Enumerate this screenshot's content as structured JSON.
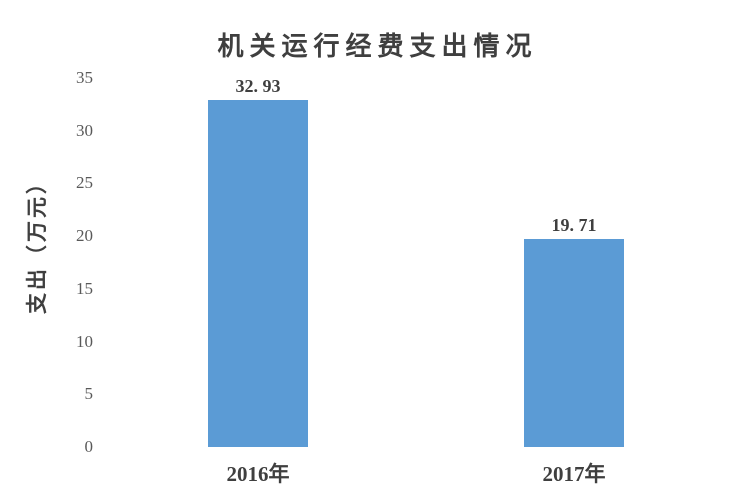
{
  "colors": {
    "bar": "#5B9BD5",
    "title_text": "#3F3F3F",
    "tick_text": "#595959",
    "background": "#FFFFFF"
  },
  "chart_data": {
    "type": "bar",
    "title": "机关运行经费支出情况",
    "xlabel": "",
    "ylabel": "支出（万元）",
    "categories": [
      "2016年",
      "2017年"
    ],
    "values": [
      32.93,
      19.71
    ],
    "value_labels": [
      "32. 93",
      "19. 71"
    ],
    "ylim": [
      0,
      35
    ],
    "yticks": [
      0,
      5,
      10,
      15,
      20,
      25,
      30,
      35
    ],
    "grid": false,
    "legend": false
  }
}
